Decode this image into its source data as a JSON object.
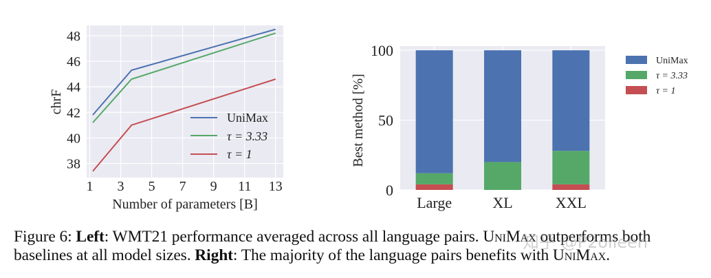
{
  "chart_data": [
    {
      "type": "line",
      "title": "",
      "xlabel": "Number of parameters [B]",
      "ylabel": "chrF",
      "xticks": [
        1,
        3,
        5,
        7,
        9,
        11,
        13
      ],
      "yticks": [
        38,
        40,
        42,
        44,
        46,
        48
      ],
      "xlim": [
        0.8,
        13.5
      ],
      "ylim": [
        36.9,
        48.8
      ],
      "grid": true,
      "legend_position": "lower right",
      "series": [
        {
          "name": "UniMax",
          "color": "#4c72b0",
          "x": [
            1.2,
            3.7,
            13
          ],
          "y": [
            41.8,
            45.3,
            48.5
          ]
        },
        {
          "name": "τ = 3.33",
          "color": "#55a868",
          "x": [
            1.2,
            3.7,
            13
          ],
          "y": [
            41.2,
            44.6,
            48.2
          ]
        },
        {
          "name": "τ = 1",
          "color": "#c44e52",
          "x": [
            1.2,
            3.7,
            13
          ],
          "y": [
            37.4,
            41.0,
            44.6
          ]
        }
      ]
    },
    {
      "type": "bar",
      "stacked": true,
      "title": "",
      "xlabel": "",
      "ylabel": "Best method [%]",
      "categories": [
        "Large",
        "XL",
        "XXL"
      ],
      "yticks": [
        0,
        50,
        100
      ],
      "ylim": [
        0,
        103
      ],
      "grid": true,
      "legend_position": "outside right",
      "series": [
        {
          "name": "τ = 1",
          "color": "#c44e52",
          "values": [
            4,
            0,
            4
          ]
        },
        {
          "name": "τ = 3.33",
          "color": "#55a868",
          "values": [
            8,
            20,
            24
          ]
        },
        {
          "name": "UniMax",
          "color": "#4c72b0",
          "values": [
            88,
            80,
            72
          ]
        }
      ]
    }
  ],
  "left": {
    "ylabel": "chrF",
    "xlabel": "Number of parameters [B]",
    "yticks": [
      "48",
      "46",
      "44",
      "42",
      "40",
      "38"
    ],
    "xticks": [
      "1",
      "3",
      "5",
      "7",
      "9",
      "11",
      "13"
    ],
    "legend": [
      "UniMax",
      "τ = 3.33",
      "τ = 1"
    ]
  },
  "right": {
    "ylabel": "Best method [%]",
    "yticks": [
      "100",
      "50",
      "0"
    ],
    "xticks": [
      "Large",
      "XL",
      "XXL"
    ],
    "legend": [
      "UniMax",
      "τ = 3.33",
      "τ = 1"
    ]
  },
  "caption": {
    "fig": "Figure 6: ",
    "left_bold": "Left",
    "left_text": ": WMT21 performance averaged across all language pairs. ",
    "unimax1": "UniMax",
    "mid_text": " outperforms both baselines at all model sizes. ",
    "right_bold": "Right",
    "right_text": ": The majority of the language pairs benefits with ",
    "unimax2": "UniMax",
    "end": "."
  },
  "watermark": "知乎 @P2olleen",
  "colors": {
    "blue": "#4c72b0",
    "green": "#55a868",
    "red": "#c44e52",
    "axes_bg": "#eaeaf2"
  }
}
